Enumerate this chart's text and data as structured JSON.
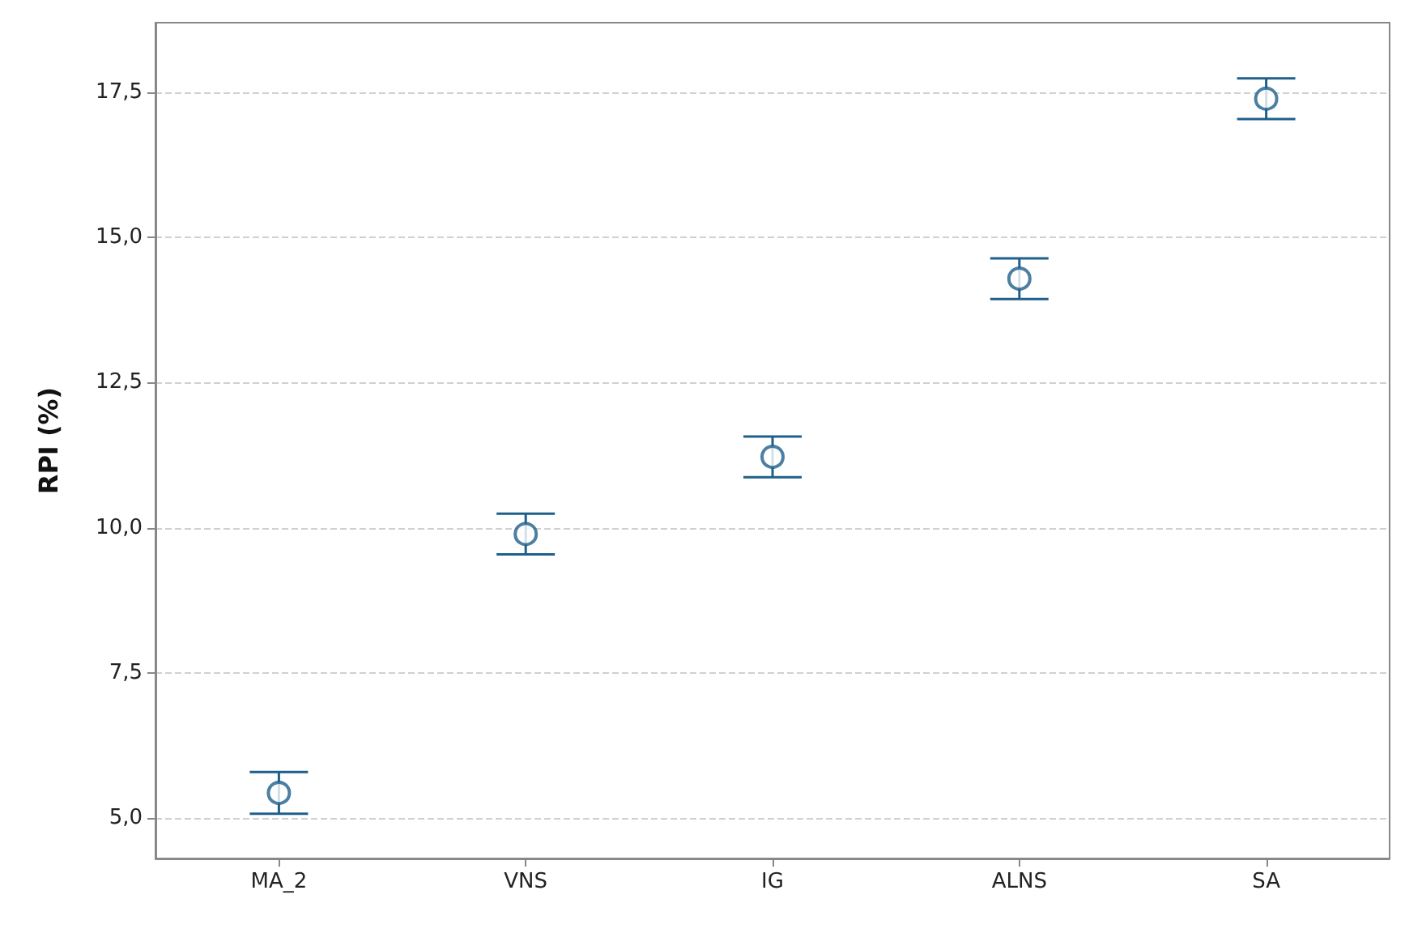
{
  "chart_data": {
    "type": "scatter",
    "ylabel": "RPI (%)",
    "categories": [
      "MA_2",
      "VNS",
      "IG",
      "ALNS",
      "SA"
    ],
    "series": [
      {
        "color": "#1f5f8b",
        "values": [
          5.43,
          9.89,
          11.22,
          14.29,
          17.39
        ],
        "errors": [
          0.36,
          0.35,
          0.35,
          0.35,
          0.35
        ]
      }
    ],
    "ylim": [
      4.3,
      18.7
    ],
    "yticks": [
      {
        "value": 5,
        "label": "5,0"
      },
      {
        "value": 7.5,
        "label": "7,5"
      },
      {
        "value": 10,
        "label": "10,0"
      },
      {
        "value": 12.5,
        "label": "12,5"
      },
      {
        "value": 15,
        "label": "15,0"
      },
      {
        "value": 17.5,
        "label": "17,5"
      }
    ],
    "grid": "y",
    "marker": "circle"
  }
}
